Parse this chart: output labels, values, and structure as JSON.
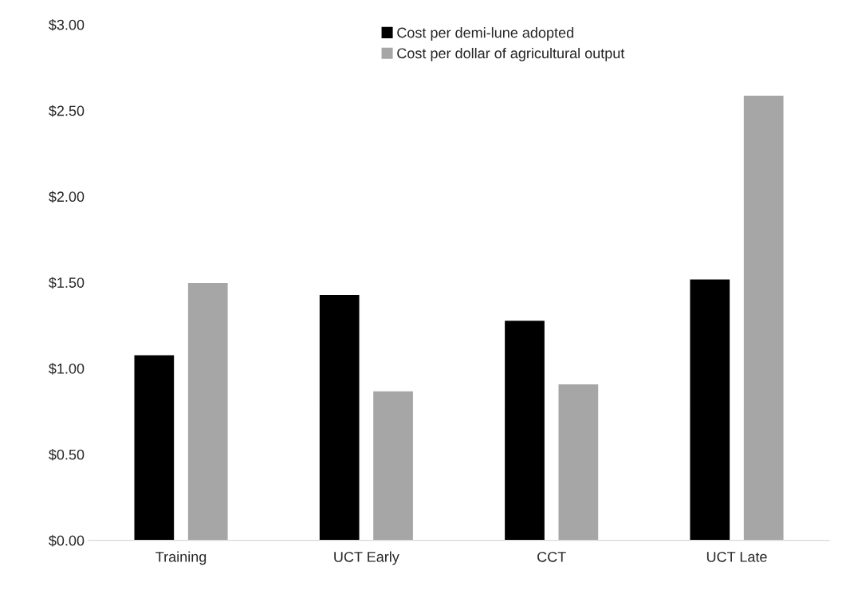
{
  "chart_data": {
    "type": "bar",
    "categories": [
      "Training",
      "UCT Early",
      "CCT",
      "UCT Late"
    ],
    "series": [
      {
        "name": "Cost per demi-lune adopted",
        "color": "#000000",
        "values": [
          1.08,
          1.43,
          1.28,
          1.52
        ]
      },
      {
        "name": "Cost per dollar of agricultural output",
        "color": "#a6a6a6",
        "values": [
          1.5,
          0.87,
          0.91,
          2.59
        ]
      }
    ],
    "ylim": [
      0,
      3
    ],
    "yticks": [
      {
        "value": 0,
        "label": "$0.00"
      },
      {
        "value": 0.5,
        "label": "$0.50"
      },
      {
        "value": 1,
        "label": "$1.00"
      },
      {
        "value": 1.5,
        "label": "$1.50"
      },
      {
        "value": 2,
        "label": "$2.00"
      },
      {
        "value": 2.5,
        "label": "$2.50"
      },
      {
        "value": 3,
        "label": "$3.00"
      }
    ],
    "grid": false,
    "legend": "top"
  }
}
